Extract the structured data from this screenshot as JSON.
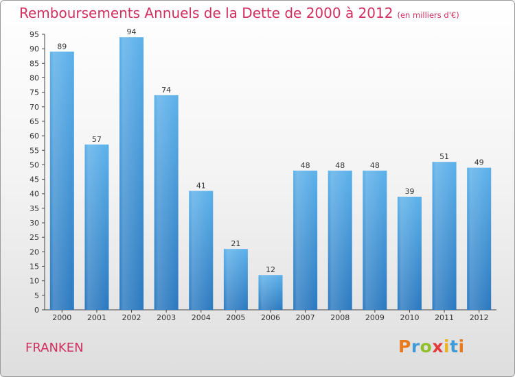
{
  "chart_data": {
    "type": "bar",
    "title": "Remboursements Annuels de la Dette de 2000 à 2012",
    "subtitle": "(en milliers d'€)",
    "categories": [
      "2000",
      "2001",
      "2002",
      "2003",
      "2004",
      "2005",
      "2006",
      "2007",
      "2008",
      "2009",
      "2010",
      "2011",
      "2012"
    ],
    "values": [
      89,
      57,
      94,
      74,
      41,
      21,
      12,
      48,
      48,
      48,
      39,
      51,
      49
    ],
    "ylim": [
      0,
      95
    ],
    "yticks": [
      0,
      5,
      10,
      15,
      20,
      25,
      30,
      35,
      40,
      45,
      50,
      55,
      60,
      65,
      70,
      75,
      80,
      85,
      90,
      95
    ],
    "grid": false,
    "bar_color": "#4aa3e0"
  },
  "footer": {
    "commune": "FRANKEN",
    "logo": "Proxiti"
  },
  "colors": {
    "title": "#cf2f5f",
    "logo_letters": [
      "#e87a1c",
      "#3f9ad6",
      "#8fbf2a",
      "#e23b3b",
      "#e8b41c",
      "#3f9ad6",
      "#e87a1c"
    ]
  }
}
